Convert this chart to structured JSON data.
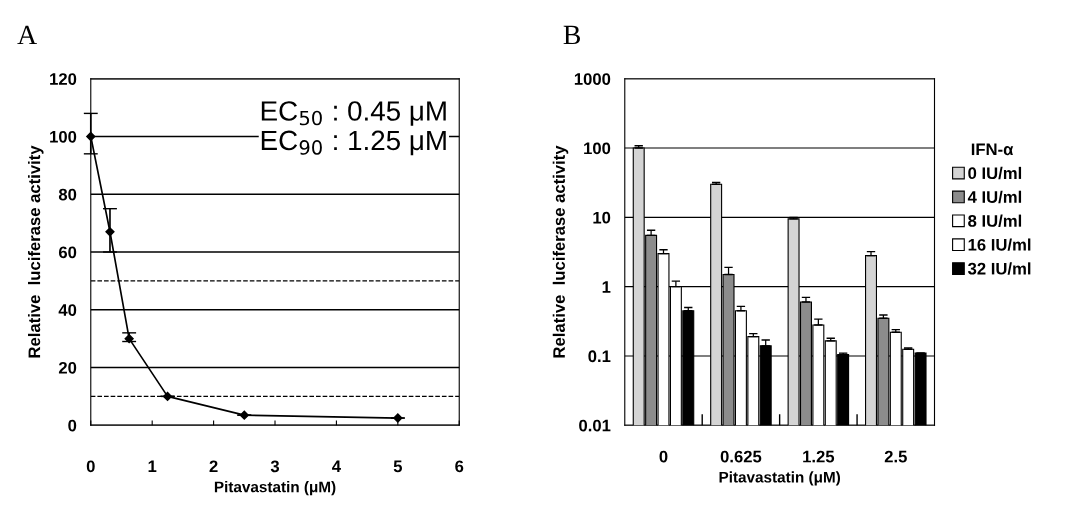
{
  "chart_data": [
    {
      "type": "line",
      "title": "A",
      "xlabel": "Pitavastatin (μM)",
      "ylabel": "Relative  luciferase activity",
      "x": [
        0,
        0.3125,
        0.625,
        1.25,
        2.5,
        5
      ],
      "series": [
        {
          "color": "#000000",
          "values": [
            100,
            67,
            30,
            10,
            3.5,
            2.5
          ],
          "errors": [
            [
              94,
              108
            ],
            [
              60,
              75
            ],
            [
              29,
              32
            ],
            null,
            null,
            null
          ]
        }
      ],
      "xlim": [
        0,
        6
      ],
      "xticks": [
        0,
        1,
        2,
        3,
        4,
        5,
        6
      ],
      "ylim": [
        0,
        120
      ],
      "yticks": [
        0,
        20,
        40,
        60,
        80,
        100,
        120
      ],
      "grid": "y",
      "marker": "diamond",
      "line_style": "solid",
      "ref_lines": [
        {
          "axis": "y",
          "value": 50,
          "line_style": "dashed"
        },
        {
          "axis": "y",
          "value": 10,
          "line_style": "dashed"
        }
      ],
      "annotations": [
        "EC$_{50}$ : 0.45 μM",
        "EC$_{90}$ : 1.25 μM"
      ]
    },
    {
      "type": "bar",
      "title": "B",
      "xlabel": "Pitavastatin (μM)",
      "ylabel": "Relative  luciferase activity",
      "legend_title": "IFN-α",
      "categories": [
        "0",
        "0.625",
        "1.25",
        "2.5"
      ],
      "series": [
        {
          "name": "0 IU/ml",
          "color": "#d4d4d4",
          "values": [
            100,
            30,
            9.5,
            2.8
          ],
          "errors": [
            [
              100,
              108
            ],
            [
              30,
              32
            ],
            [
              9.5,
              10
            ],
            [
              2.8,
              3.2
            ]
          ]
        },
        {
          "name": "4 IU/ml",
          "color": "#8c8c8c",
          "values": [
            5.5,
            1.5,
            0.6,
            0.35
          ],
          "errors": [
            [
              5.5,
              6.5
            ],
            [
              1.5,
              1.9
            ],
            [
              0.6,
              0.7
            ],
            [
              0.35,
              0.39
            ]
          ]
        },
        {
          "name": "8 IU/ml",
          "color": "#ffffff",
          "values": [
            3,
            0.45,
            0.28,
            0.22
          ],
          "errors": [
            [
              3,
              3.4
            ],
            [
              0.45,
              0.52
            ],
            [
              0.28,
              0.34
            ],
            [
              0.22,
              0.24
            ]
          ]
        },
        {
          "name": "16 IU/ml",
          "color": "#ffffff",
          "values": [
            1.0,
            0.19,
            0.165,
            0.125
          ],
          "errors": [
            [
              1.0,
              1.2
            ],
            [
              0.19,
              0.21
            ],
            [
              0.165,
              0.18
            ],
            [
              0.125,
              0.13
            ]
          ]
        },
        {
          "name": "32 IU/ml",
          "color": "#000000",
          "values": [
            0.45,
            0.14,
            0.105,
            0.11
          ],
          "errors": [
            [
              0.45,
              0.5
            ],
            [
              0.14,
              0.17
            ],
            [
              0.105,
              0.11
            ],
            null
          ]
        }
      ],
      "log": "y",
      "ylim": [
        0.01,
        1000
      ],
      "yticks": [
        0.01,
        0.1,
        1,
        10,
        100,
        1000
      ],
      "grid": "y",
      "legend": "right"
    }
  ]
}
